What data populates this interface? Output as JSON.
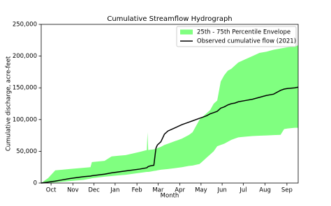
{
  "chart_data": {
    "type": "line",
    "title": "Cumulative Streamflow Hydrograph",
    "x_label": "Month",
    "y_label": "Cumulative discharge, acre-feet",
    "x": [
      0,
      10,
      20,
      30,
      40,
      60,
      70,
      72,
      90,
      100,
      110,
      120,
      140,
      150,
      151,
      152,
      155,
      160,
      163,
      165,
      170,
      175,
      180,
      190,
      200,
      210,
      215,
      225,
      230,
      235,
      240,
      245,
      250,
      255,
      260,
      265,
      270,
      275,
      280,
      290,
      300,
      310,
      320,
      330,
      340,
      345,
      350,
      360,
      365
    ],
    "series": [
      {
        "name": "25th - 75th Percentile Envelope",
        "kind": "band",
        "color": "#80ff80",
        "upper": [
          0,
          8000,
          20000,
          21000,
          22000,
          24000,
          25000,
          33000,
          35000,
          42000,
          43000,
          44000,
          49000,
          52000,
          80000,
          52000,
          52500,
          53000,
          54000,
          55000,
          57000,
          60000,
          62000,
          66000,
          70000,
          76000,
          80000,
          100000,
          105000,
          110000,
          115000,
          125000,
          130000,
          160000,
          170000,
          177000,
          180000,
          185000,
          190000,
          195000,
          200000,
          205000,
          207000,
          210000,
          212000,
          213000,
          214000,
          215000,
          217000
        ],
        "lower": [
          0,
          500,
          1000,
          2000,
          3000,
          5000,
          7000,
          7500,
          10000,
          11000,
          12000,
          13000,
          16000,
          17500,
          17500,
          17500,
          18000,
          19000,
          19500,
          20000,
          21000,
          21500,
          22000,
          23500,
          25000,
          27000,
          27500,
          30000,
          35000,
          40000,
          45000,
          50000,
          58000,
          60000,
          62000,
          65000,
          68000,
          70000,
          72000,
          73000,
          74000,
          74500,
          75000,
          75500,
          76000,
          85000,
          86000,
          87000,
          87000
        ]
      },
      {
        "name": "Observed cumulative flow (2021)",
        "kind": "line",
        "color": "#000000",
        "values": [
          0,
          1500,
          3000,
          5000,
          7000,
          10000,
          11000,
          11500,
          14000,
          16000,
          17500,
          19000,
          22000,
          24000,
          25000,
          26000,
          27000,
          28000,
          55000,
          60000,
          65000,
          77000,
          82000,
          87000,
          92000,
          96000,
          98000,
          102000,
          104000,
          106000,
          109000,
          111000,
          113000,
          118000,
          120000,
          123000,
          125000,
          126000,
          128000,
          130000,
          132000,
          135000,
          138000,
          140000,
          146000,
          148000,
          149000,
          150000,
          151000
        ]
      }
    ],
    "xlim": [
      0,
      365
    ],
    "xticks": [
      {
        "value": 14,
        "label": "Oct"
      },
      {
        "value": 45,
        "label": "Nov"
      },
      {
        "value": 75,
        "label": "Dec"
      },
      {
        "value": 105,
        "label": "Jan"
      },
      {
        "value": 136,
        "label": "Feb"
      },
      {
        "value": 166,
        "label": "Mar"
      },
      {
        "value": 197,
        "label": "Apr"
      },
      {
        "value": 227,
        "label": "May"
      },
      {
        "value": 257,
        "label": "Jun"
      },
      {
        "value": 287,
        "label": "Jul"
      },
      {
        "value": 318,
        "label": "Aug"
      },
      {
        "value": 349,
        "label": "Sep"
      }
    ],
    "ylim": [
      0,
      250000
    ],
    "yticks": [
      0,
      {
        "value": 50000,
        "label": "50,000"
      },
      {
        "value": 100000,
        "label": "100,000"
      },
      {
        "value": 150000,
        "label": "150,000"
      },
      {
        "value": 200000,
        "label": "200,000"
      },
      {
        "value": 250000,
        "label": "250,000"
      }
    ],
    "legend": "upper right"
  }
}
